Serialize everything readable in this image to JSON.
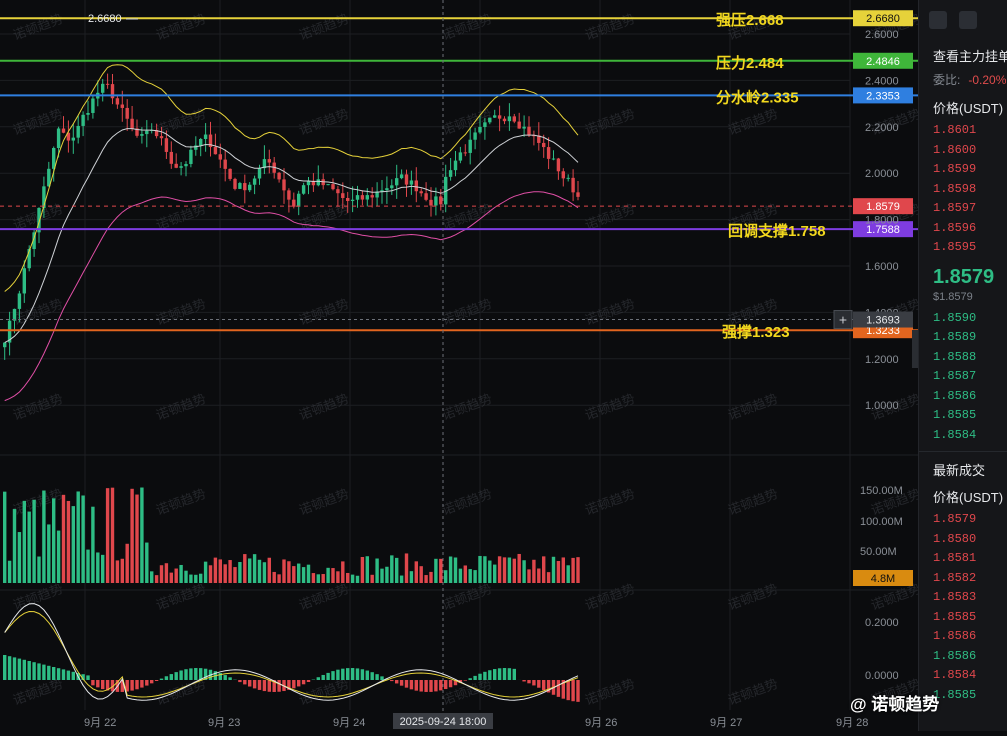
{
  "watermark": "诺顿趋势",
  "footer_brand": "@ 诺顿趋势",
  "price_axis": [
    "2.6000",
    "2.4000",
    "2.2000",
    "2.0000",
    "1.8000",
    "1.6000",
    "1.4000",
    "1.2000",
    "1.0000"
  ],
  "volume_axis": [
    "150.00M",
    "100.00M",
    "50.00M"
  ],
  "macd_axis": [
    "0.2000",
    "0.0000"
  ],
  "time_axis": [
    "9月 22",
    "9月 23",
    "9月 24",
    "9月 26",
    "9月 27",
    "9月 28"
  ],
  "crosshair_time": "2025-09-24 18:00",
  "high_marker": "2.6680",
  "levels": [
    {
      "name": "strong-resistance",
      "label": "强压2.668",
      "tag": "2.6680",
      "color": "#e6d23a",
      "tag_bg": "#e6d23a",
      "tag_fg": "#111"
    },
    {
      "name": "resistance",
      "label": "压力2.484",
      "tag": "2.4846",
      "color": "#3fb63a",
      "tag_bg": "#3fb63a",
      "tag_fg": "#fff"
    },
    {
      "name": "watershed",
      "label": "分水岭2.335",
      "tag": "2.3353",
      "color": "#2f7fe0",
      "tag_bg": "#2f7fe0",
      "tag_fg": "#fff"
    },
    {
      "name": "pullback-support",
      "label": "回调支撑1.758",
      "tag": "1.7588",
      "color": "#7e3ce0",
      "tag_bg": "#7e3ce0",
      "tag_fg": "#fff"
    },
    {
      "name": "strong-support",
      "label": "强撑1.323",
      "tag": "1.3233",
      "color": "#e2651f",
      "tag_bg": "#e2651f",
      "tag_fg": "#fff"
    }
  ],
  "current_price_tag": "1.8579",
  "crosshair_price_tag": "1.3693",
  "volume_tag": "4.8M",
  "sidebar": {
    "title": "查看主力挂单",
    "ratio_label": "委比:",
    "ratio_value": "-0.20%",
    "price_header": "价格(USDT)",
    "asks": [
      "1.8601",
      "1.8600",
      "1.8599",
      "1.8598",
      "1.8597",
      "1.8596",
      "1.8595"
    ],
    "last_price": "1.8579",
    "last_price_usd": "$1.8579",
    "bids": [
      "1.8590",
      "1.8589",
      "1.8588",
      "1.8587",
      "1.8586",
      "1.8585",
      "1.8584"
    ],
    "trades_title": "最新成交",
    "trades_header": "价格(USDT)",
    "trades": [
      {
        "p": "1.8579",
        "c": "red"
      },
      {
        "p": "1.8580",
        "c": "red"
      },
      {
        "p": "1.8581",
        "c": "red"
      },
      {
        "p": "1.8582",
        "c": "red"
      },
      {
        "p": "1.8583",
        "c": "red"
      },
      {
        "p": "1.8585",
        "c": "red"
      },
      {
        "p": "1.8586",
        "c": "red"
      },
      {
        "p": "1.8586",
        "c": "green"
      },
      {
        "p": "1.8584",
        "c": "red"
      },
      {
        "p": "1.8585",
        "c": "green"
      }
    ]
  },
  "colors": {
    "up": "#2ebd85",
    "down": "#e0474c",
    "bb_upper": "#e6d23a",
    "bb_mid": "#cfd2d6",
    "bb_lower": "#e04fa6"
  }
}
